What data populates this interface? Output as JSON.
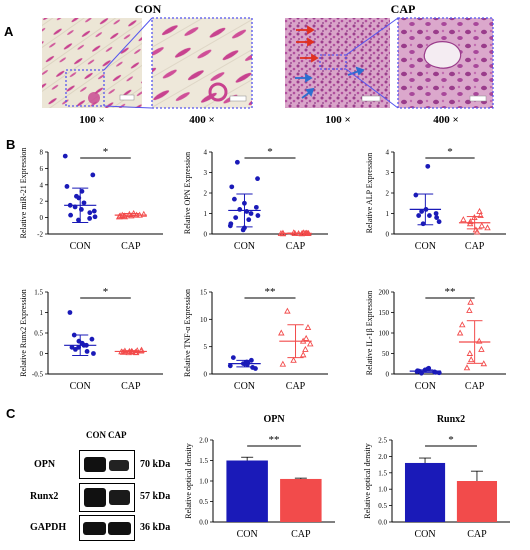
{
  "panels": {
    "a": "A",
    "b": "B",
    "c": "C"
  },
  "histology": {
    "groups": [
      {
        "title": "CON",
        "magnifications": [
          "100 ×",
          "400 ×"
        ]
      },
      {
        "title": "CAP",
        "magnifications": [
          "100 ×",
          "400 ×"
        ]
      }
    ]
  },
  "colors": {
    "con_blue": "#1a1ab8",
    "cap_red": "#f24b4b",
    "stain_pink": "#c8428f",
    "zoom_frame": "#5555ee"
  },
  "chart_data": [
    {
      "type": "scatter",
      "ylabel": "Relative miR-21 Expression",
      "categories": [
        "CON",
        "CAP"
      ],
      "ylim": [
        -2,
        8
      ],
      "yticks": [
        -2,
        0,
        2,
        4,
        6,
        8
      ],
      "significance": "*",
      "series": [
        {
          "values": [
            7.5,
            5.2,
            3.8,
            3.2,
            2.6,
            2.4,
            1.8,
            1.5,
            1.3,
            1.0,
            0.8,
            0.6,
            0.3,
            0.1,
            -0.1,
            -0.3
          ],
          "mean": 1.5,
          "sd": 2.1
        },
        {
          "values": [
            0.5,
            0.4,
            0.4,
            0.3,
            0.3,
            0.3,
            0.2,
            0.2,
            0.2,
            0.1,
            0.1,
            0.1
          ],
          "mean": 0.3,
          "sd": 0.2
        }
      ]
    },
    {
      "type": "scatter",
      "ylabel": "Relative OPN Expression",
      "categories": [
        "CON",
        "CAP"
      ],
      "ylim": [
        0,
        4
      ],
      "yticks": [
        0,
        1,
        2,
        3,
        4
      ],
      "significance": "*",
      "series": [
        {
          "values": [
            3.5,
            2.7,
            2.3,
            1.7,
            1.5,
            1.3,
            1.2,
            1.1,
            1.0,
            0.9,
            0.8,
            0.7,
            0.5,
            0.4,
            0.3,
            0.2
          ],
          "mean": 1.15,
          "sd": 0.8
        },
        {
          "values": [
            0.06,
            0.05,
            0.05,
            0.04,
            0.04,
            0.03,
            0.03,
            0.03,
            0.02,
            0.02,
            0.02,
            0.02,
            0.01,
            0.01
          ],
          "mean": 0.03,
          "sd": 0.02
        }
      ]
    },
    {
      "type": "scatter",
      "ylabel": "Relative ALP Expression",
      "categories": [
        "CON",
        "CAP"
      ],
      "ylim": [
        0,
        4
      ],
      "yticks": [
        0,
        1,
        2,
        3,
        4
      ],
      "significance": "*",
      "series": [
        {
          "values": [
            3.3,
            1.9,
            1.2,
            1.1,
            1.0,
            0.9,
            0.9,
            0.8,
            0.6,
            0.5
          ],
          "mean": 1.2,
          "sd": 0.75
        },
        {
          "values": [
            1.1,
            0.9,
            0.8,
            0.7,
            0.6,
            0.5,
            0.4,
            0.3,
            0.2,
            0.1
          ],
          "mean": 0.55,
          "sd": 0.3
        }
      ]
    },
    {
      "type": "scatter",
      "ylabel": "Relative Runx2 Expression",
      "categories": [
        "CON",
        "CAP"
      ],
      "ylim": [
        -0.5,
        1.5
      ],
      "yticks": [
        -0.5,
        0.0,
        0.5,
        1.0,
        1.5
      ],
      "significance": "*",
      "series": [
        {
          "values": [
            1.0,
            0.45,
            0.35,
            0.3,
            0.25,
            0.2,
            0.15,
            0.1,
            0.05,
            0.0,
            0.15,
            0.2
          ],
          "mean": 0.2,
          "sd": 0.25
        },
        {
          "values": [
            0.08,
            0.07,
            0.06,
            0.06,
            0.05,
            0.05,
            0.04,
            0.04,
            0.03,
            0.03,
            0.02,
            0.02
          ],
          "mean": 0.05,
          "sd": 0.02
        }
      ]
    },
    {
      "type": "scatter",
      "ylabel": "Relative TNF-α Expression",
      "categories": [
        "CON",
        "CAP"
      ],
      "ylim": [
        0,
        15
      ],
      "yticks": [
        0,
        5,
        10,
        15
      ],
      "significance": "**",
      "series": [
        {
          "values": [
            3.0,
            2.5,
            2.2,
            2.0,
            1.9,
            1.7,
            1.5,
            1.2,
            1.0
          ],
          "mean": 1.9,
          "sd": 0.6
        },
        {
          "values": [
            11.5,
            8.5,
            7.5,
            6.5,
            6.0,
            5.5,
            4.5,
            3.5,
            2.5,
            1.8
          ],
          "mean": 6.0,
          "sd": 3.0
        }
      ]
    },
    {
      "type": "scatter",
      "ylabel": "Relative IL-1β Expression",
      "categories": [
        "CON",
        "CAP"
      ],
      "ylim": [
        0,
        200
      ],
      "yticks": [
        0,
        50,
        100,
        150,
        200
      ],
      "significance": "**",
      "series": [
        {
          "values": [
            14,
            12,
            10,
            8,
            7,
            6,
            5,
            4,
            3,
            2
          ],
          "mean": 7,
          "sd": 3
        },
        {
          "values": [
            175,
            155,
            120,
            100,
            80,
            60,
            50,
            35,
            25,
            15
          ],
          "mean": 78,
          "sd": 52
        }
      ]
    },
    {
      "type": "bar",
      "title": "OPN",
      "ylabel": "Relative optical density",
      "categories": [
        "CON",
        "CAP"
      ],
      "ylim": [
        0,
        2
      ],
      "yticks": [
        0.0,
        0.5,
        1.0,
        1.5,
        2.0
      ],
      "values": [
        1.5,
        1.05
      ],
      "errors": [
        0.08,
        0.02
      ],
      "significance": "**"
    },
    {
      "type": "bar",
      "title": "Runx2",
      "ylabel": "Relative optical  density",
      "categories": [
        "CON",
        "CAP"
      ],
      "ylim": [
        0,
        2.5
      ],
      "yticks": [
        0.0,
        0.5,
        1.0,
        1.5,
        2.0,
        2.5
      ],
      "values": [
        1.8,
        1.25
      ],
      "errors": [
        0.15,
        0.3
      ],
      "significance": "*"
    }
  ],
  "western_blot": {
    "lanes": [
      "CON",
      "CAP"
    ],
    "rows": [
      {
        "protein": "OPN",
        "kda": "70 kDa"
      },
      {
        "protein": "Runx2",
        "kda": "57 kDa"
      },
      {
        "protein": "GAPDH",
        "kda": "36 kDa"
      }
    ]
  }
}
